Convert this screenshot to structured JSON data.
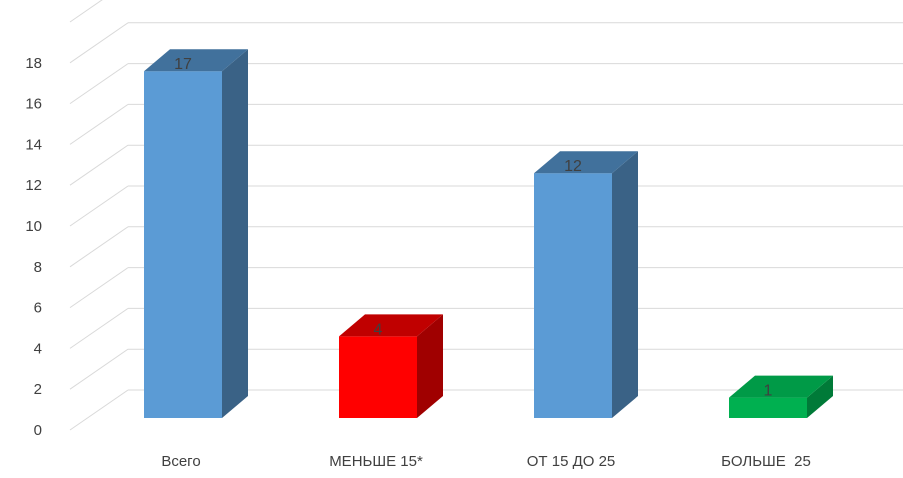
{
  "chart_data": {
    "type": "bar",
    "style": "3d-column",
    "categories": [
      "Всего",
      "МЕНЬШЕ 15*",
      "ОТ 15 ДО 25",
      "БОЛЬШЕ  25"
    ],
    "values": [
      17,
      4,
      12,
      1
    ],
    "data_labels": [
      "17",
      "4",
      "12",
      "1"
    ],
    "colors": [
      "#5b9bd5",
      "#ff0000",
      "#5b9bd5",
      "#00b050"
    ],
    "side_colors": [
      "#3a6286",
      "#a00000",
      "#3a6286",
      "#007a38"
    ],
    "top_colors": [
      "#41719c",
      "#c00000",
      "#41719c",
      "#009a47"
    ],
    "ylim": [
      0,
      18
    ],
    "yticks": [
      "0",
      "2",
      "4",
      "6",
      "8",
      "10",
      "12",
      "14",
      "16",
      "18"
    ],
    "grid": true,
    "legend": "none",
    "title": "",
    "xlabel": "",
    "ylabel": ""
  }
}
